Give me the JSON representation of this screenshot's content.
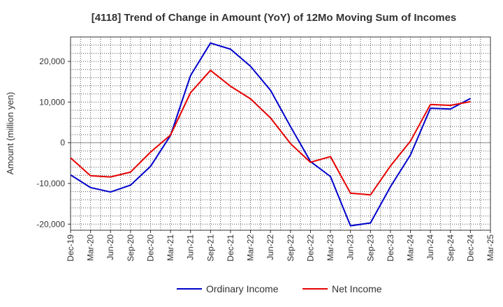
{
  "chart_data": {
    "type": "line",
    "title": "[4118]  Trend of Change in Amount (YoY) of 12Mo Moving Sum of Incomes",
    "xlabel": "",
    "ylabel": "Amount (million yen)",
    "ylim": [
      -21500,
      26000
    ],
    "yticks": [
      -20000,
      -10000,
      0,
      10000,
      20000
    ],
    "ytick_labels": [
      "-20,000",
      "-10,000",
      "0",
      "10,000",
      "20,000"
    ],
    "categories": [
      "Dec-19",
      "Mar-20",
      "Jun-20",
      "Sep-20",
      "Dec-20",
      "Mar-21",
      "Jun-21",
      "Sep-21",
      "Dec-21",
      "Mar-22",
      "Jun-22",
      "Sep-22",
      "Dec-22",
      "Mar-23",
      "Jun-23",
      "Sep-23",
      "Dec-23",
      "Mar-24",
      "Jun-24",
      "Sep-24",
      "Dec-24",
      "Mar-25"
    ],
    "grid": true,
    "legend_position": "bottom",
    "series": [
      {
        "name": "Ordinary Income",
        "color": "#0000cc",
        "values": [
          -7900,
          -11000,
          -12100,
          -10400,
          -5800,
          1800,
          16500,
          24500,
          23000,
          18800,
          12900,
          4000,
          -4600,
          -8300,
          -20400,
          -19700,
          -10800,
          -3000,
          8500,
          8300,
          10900,
          null
        ]
      },
      {
        "name": "Net Income",
        "color": "#e60000",
        "values": [
          -3700,
          -8100,
          -8400,
          -7200,
          -2300,
          1900,
          12300,
          17800,
          13900,
          10800,
          6100,
          -200,
          -4800,
          -3400,
          -12400,
          -12800,
          -5700,
          400,
          9400,
          9200,
          10100,
          null
        ]
      }
    ]
  }
}
